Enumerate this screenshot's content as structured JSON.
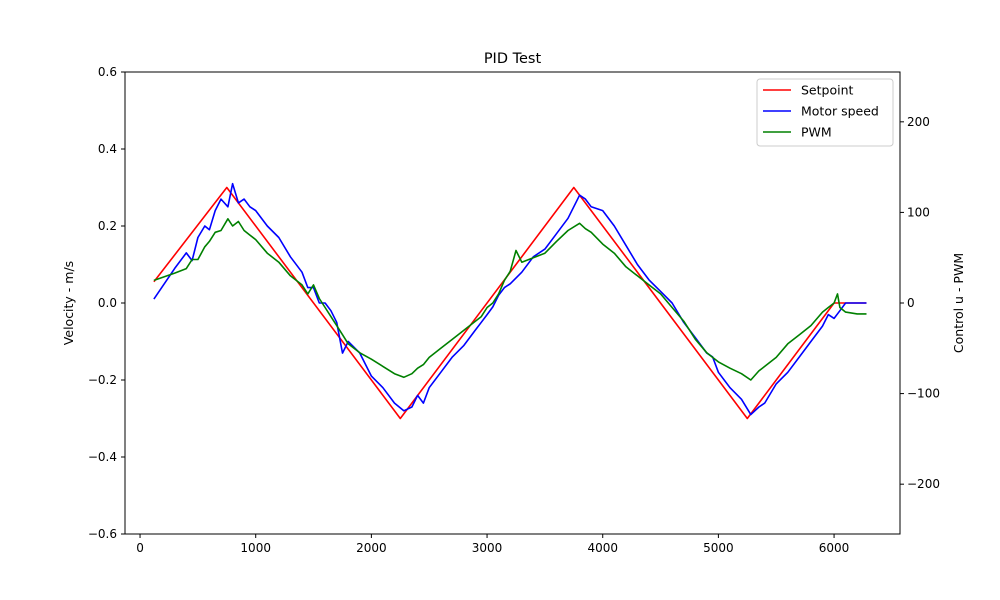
{
  "chart_data": {
    "type": "line",
    "title": "PID Test",
    "xlabel": "",
    "ylabel": "Velocity - m/s",
    "y2label": "Control u - PWM",
    "xlim": [
      -130,
      6570
    ],
    "ylim": [
      -0.6,
      0.6
    ],
    "y2lim": [
      -255,
      255
    ],
    "x_ticks": [
      0,
      1000,
      2000,
      3000,
      4000,
      5000,
      6000
    ],
    "x_tick_labels": [
      "0",
      "1000",
      "2000",
      "3000",
      "4000",
      "5000",
      "6000"
    ],
    "y_ticks": [
      -0.6,
      -0.4,
      -0.2,
      0.0,
      0.2,
      0.4,
      0.6
    ],
    "y_tick_labels": [
      "−0.6",
      "−0.4",
      "−0.2",
      "0.0",
      "0.2",
      "0.4",
      "0.6"
    ],
    "y2_ticks": [
      -200,
      -100,
      0,
      100,
      200
    ],
    "y2_tick_labels": [
      "−200",
      "−100",
      "0",
      "100",
      "200"
    ],
    "grid": false,
    "legend_position": "top-right",
    "series": [
      {
        "name": "Setpoint",
        "axis": "left",
        "color": "#ff0000",
        "x": [
          120,
          750,
          2250,
          3750,
          5250,
          6000,
          6000,
          6280
        ],
        "y": [
          0.055,
          0.3,
          -0.3,
          0.3,
          -0.3,
          0.0,
          0.0,
          0.0
        ]
      },
      {
        "name": "Motor speed",
        "axis": "left",
        "color": "#0000ff",
        "x": [
          120,
          300,
          400,
          450,
          500,
          560,
          600,
          650,
          700,
          760,
          800,
          850,
          900,
          950,
          1000,
          1100,
          1200,
          1300,
          1400,
          1450,
          1500,
          1550,
          1600,
          1650,
          1700,
          1750,
          1800,
          1900,
          2000,
          2100,
          2200,
          2280,
          2350,
          2400,
          2450,
          2500,
          2600,
          2700,
          2800,
          2900,
          2950,
          3000,
          3050,
          3100,
          3150,
          3200,
          3300,
          3400,
          3500,
          3600,
          3700,
          3800,
          3850,
          3900,
          4000,
          4100,
          4200,
          4300,
          4400,
          4500,
          4600,
          4700,
          4800,
          4900,
          4950,
          5000,
          5100,
          5200,
          5280,
          5350,
          5400,
          5500,
          5600,
          5700,
          5800,
          5900,
          5950,
          6000,
          6050,
          6100,
          6200,
          6280
        ],
        "y": [
          0.01,
          0.09,
          0.13,
          0.11,
          0.17,
          0.2,
          0.19,
          0.24,
          0.27,
          0.25,
          0.31,
          0.26,
          0.27,
          0.25,
          0.24,
          0.2,
          0.17,
          0.12,
          0.08,
          0.04,
          0.04,
          0.0,
          0.0,
          -0.02,
          -0.05,
          -0.13,
          -0.1,
          -0.13,
          -0.19,
          -0.22,
          -0.26,
          -0.28,
          -0.27,
          -0.24,
          -0.26,
          -0.22,
          -0.18,
          -0.14,
          -0.11,
          -0.07,
          -0.05,
          -0.03,
          -0.01,
          0.02,
          0.04,
          0.05,
          0.08,
          0.12,
          0.14,
          0.18,
          0.22,
          0.28,
          0.27,
          0.25,
          0.24,
          0.2,
          0.15,
          0.1,
          0.06,
          0.03,
          0.0,
          -0.05,
          -0.09,
          -0.13,
          -0.14,
          -0.18,
          -0.22,
          -0.25,
          -0.29,
          -0.27,
          -0.26,
          -0.21,
          -0.18,
          -0.14,
          -0.1,
          -0.06,
          -0.03,
          -0.04,
          -0.02,
          0.0,
          0.0,
          0.0
        ]
      },
      {
        "name": "PWM",
        "axis": "right",
        "color": "#008000",
        "x": [
          120,
          300,
          400,
          450,
          500,
          560,
          600,
          650,
          700,
          760,
          800,
          850,
          900,
          950,
          1000,
          1100,
          1200,
          1300,
          1400,
          1450,
          1500,
          1550,
          1600,
          1650,
          1700,
          1750,
          1800,
          1900,
          2000,
          2100,
          2200,
          2280,
          2350,
          2400,
          2450,
          2500,
          2600,
          2700,
          2800,
          2900,
          2950,
          3000,
          3050,
          3100,
          3150,
          3200,
          3250,
          3300,
          3400,
          3500,
          3600,
          3700,
          3800,
          3850,
          3900,
          4000,
          4100,
          4200,
          4300,
          4400,
          4500,
          4600,
          4700,
          4800,
          4900,
          4950,
          5000,
          5100,
          5200,
          5280,
          5350,
          5400,
          5500,
          5600,
          5700,
          5800,
          5900,
          5950,
          6000,
          6030,
          6050,
          6100,
          6200,
          6280
        ],
        "y": [
          25,
          33,
          38,
          48,
          48,
          62,
          68,
          78,
          80,
          93,
          85,
          90,
          80,
          75,
          70,
          55,
          45,
          30,
          20,
          10,
          20,
          5,
          -5,
          -15,
          -25,
          -35,
          -45,
          -55,
          -62,
          -70,
          -78,
          -82,
          -78,
          -72,
          -68,
          -60,
          -50,
          -40,
          -30,
          -20,
          -15,
          -5,
          0,
          10,
          25,
          35,
          58,
          45,
          50,
          55,
          68,
          80,
          88,
          82,
          78,
          65,
          55,
          40,
          30,
          20,
          10,
          -5,
          -20,
          -40,
          -55,
          -60,
          -65,
          -72,
          -78,
          -85,
          -75,
          -70,
          -60,
          -45,
          -35,
          -25,
          -10,
          -5,
          0,
          10,
          -5,
          -10,
          -12,
          -12
        ]
      }
    ]
  }
}
